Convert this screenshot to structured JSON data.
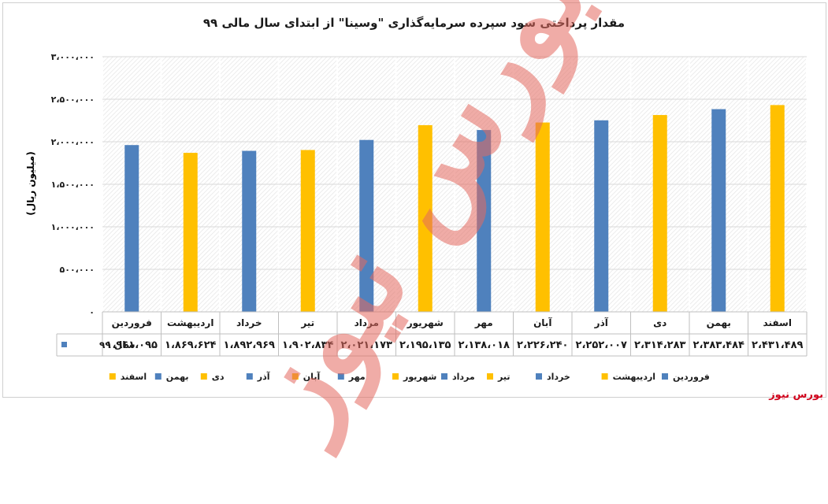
{
  "chart_data": {
    "type": "bar",
    "title": "مقدار پرداختی سود سپرده سرمایه‌گذاری \"وسینا\" از ابتدای سال مالی ۹۹",
    "ylabel": "(میلیون ریال)",
    "xlabel": "",
    "ylim": [
      0,
      3000000
    ],
    "ytick_labels": [
      "۰",
      "۵۰۰،۰۰۰",
      "۱،۰۰۰،۰۰۰",
      "۱،۵۰۰،۰۰۰",
      "۲،۰۰۰،۰۰۰",
      "۲،۵۰۰،۰۰۰",
      "۳،۰۰۰،۰۰۰"
    ],
    "ytick_values": [
      0,
      500000,
      1000000,
      1500000,
      2000000,
      2500000,
      3000000
    ],
    "categories": [
      "فروردین",
      "اردیبهشت",
      "خرداد",
      "تیر",
      "مرداد",
      "شهریور",
      "مهر",
      "آبان",
      "آذر",
      "دی",
      "بهمن",
      "اسفند"
    ],
    "values": [
      1961095,
      1869624,
      1892969,
      1902834,
      2021173,
      2195135,
      2138018,
      2226240,
      2252007,
      2314283,
      2383484,
      2431489
    ],
    "value_labels": [
      "۱،۹۶۱،۰۹۵",
      "۱،۸۶۹،۶۲۴",
      "۱،۸۹۲،۹۶۹",
      "۱،۹۰۲،۸۳۴",
      "۲،۰۲۱،۱۷۳",
      "۲،۱۹۵،۱۳۵",
      "۲،۱۳۸،۰۱۸",
      "۲،۲۲۶،۲۴۰",
      "۲،۲۵۲،۰۰۷",
      "۲،۳۱۴،۲۸۳",
      "۲،۳۸۳،۴۸۴",
      "۲،۴۳۱،۴۸۹"
    ],
    "bar_colors": [
      "#4f81bd",
      "#ffc000",
      "#4f81bd",
      "#ffc000",
      "#4f81bd",
      "#ffc000",
      "#4f81bd",
      "#ffc000",
      "#4f81bd",
      "#ffc000",
      "#4f81bd",
      "#ffc000"
    ],
    "table_series_label": "سال ۹۹",
    "legend_placement": "bottom",
    "grid": true
  },
  "watermark": "بورس نیوز",
  "source": "بورس نیوز"
}
